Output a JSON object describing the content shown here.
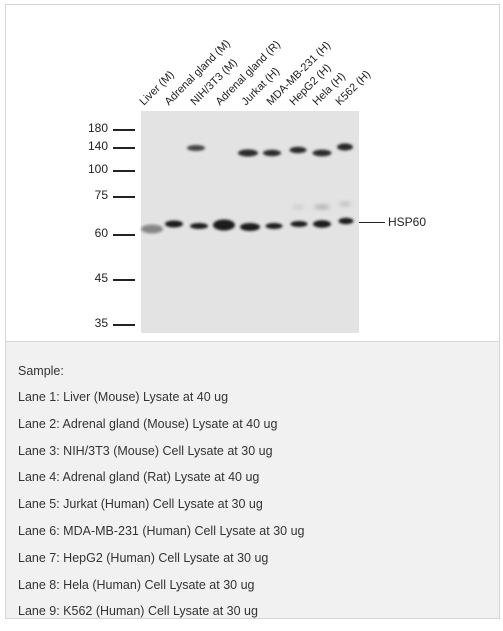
{
  "figure": {
    "lane_labels": [
      "Liver (M)",
      "Adrenal gland (M)",
      "NIH/3T3 (M)",
      "Adrenal gland (R)",
      "Jurkat (H)",
      "MDA-MB-231 (H)",
      "HepG2 (H)",
      "Hela (H)",
      "K562 (H)"
    ],
    "markers": [
      "180",
      "140",
      "100",
      "75",
      "60",
      "45",
      "35"
    ],
    "target_label": "HSP60"
  },
  "caption": {
    "title": "Sample:",
    "lanes": [
      "Lane 1: Liver (Mouse) Lysate at 40 ug",
      "Lane 2: Adrenal gland (Mouse) Lysate at 40 ug",
      "Lane 3: NIH/3T3 (Mouse) Cell Lysate at 30 ug",
      "Lane 4: Adrenal gland (Rat) Lysate at 40 ug",
      "Lane 5: Jurkat (Human) Cell Lysate at 30 ug",
      "Lane 6: MDA-MB-231 (Human) Cell Lysate at 30 ug",
      "Lane 7: HepG2 (Human) Cell Lysate at 30 ug",
      "Lane 8: Hela (Human) Cell Lysate at 30 ug",
      "Lane 9: K562 (Human) Cell Lysate at 30 ug"
    ]
  }
}
